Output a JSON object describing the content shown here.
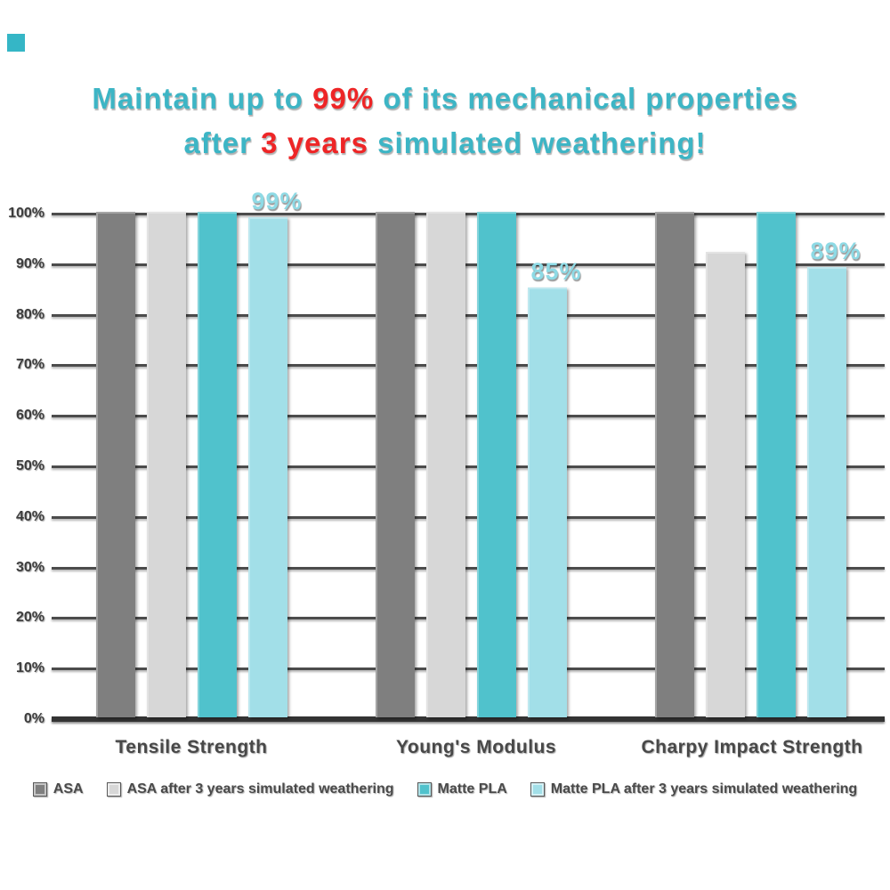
{
  "title": {
    "line1_segments": [
      {
        "text": "Maintain up to ",
        "color_key": "title_teal"
      },
      {
        "text": "99%",
        "color_key": "title_red"
      },
      {
        "text": " of its mechanical properties",
        "color_key": "title_teal"
      }
    ],
    "line2_segments": [
      {
        "text": "after ",
        "color_key": "title_teal"
      },
      {
        "text": "3 years",
        "color_key": "title_red"
      },
      {
        "text": " simulated weathering!",
        "color_key": "title_teal"
      }
    ],
    "full_text": "Maintain up to 99% of its mechanical properties after 3 years simulated weathering!"
  },
  "colors": {
    "title_teal": "#3db5c5",
    "title_red": "#ee2526",
    "bar_dark_gray": "#7f7f7f",
    "bar_light_gray": "#d7d7d7",
    "bar_teal": "#50c2cc",
    "bar_light_cyan": "#a2dfe8",
    "data_label_cyan": "#8edae5",
    "grid_line": "#4c4c4c",
    "axis_baseline": "#333333",
    "tick_text": "#3d3d3d",
    "legend_text": "#4a4a4a",
    "decor_square": "#35b6c6"
  },
  "chart_data": {
    "type": "bar",
    "title": "Maintain up to 99% of its mechanical properties after 3 years simulated weathering!",
    "xlabel": "",
    "ylabel": "",
    "ylim": [
      0,
      100
    ],
    "yticks": [
      "0%",
      "10%",
      "20%",
      "30%",
      "40%",
      "50%",
      "60%",
      "70%",
      "80%",
      "90%",
      "100%"
    ],
    "ytick_values": [
      0,
      10,
      20,
      30,
      40,
      50,
      60,
      70,
      80,
      90,
      100
    ],
    "grid": "horizontal",
    "legend_position": "bottom",
    "categories": [
      "Tensile Strength",
      "Young's Modulus",
      "Charpy Impact Strength"
    ],
    "series": [
      {
        "name": "ASA",
        "color_key": "bar_dark_gray",
        "values": [
          100,
          100,
          100
        ],
        "value_labels": [
          "",
          "",
          ""
        ]
      },
      {
        "name": "ASA after 3 years simulated weathering",
        "color_key": "bar_light_gray",
        "values": [
          100,
          100,
          92
        ],
        "value_labels": [
          "",
          "",
          ""
        ]
      },
      {
        "name": "Matte PLA",
        "color_key": "bar_teal",
        "values": [
          100,
          100,
          100
        ],
        "value_labels": [
          "",
          "",
          ""
        ]
      },
      {
        "name": "Matte PLA after 3 years simulated weathering",
        "color_key": "bar_light_cyan",
        "values": [
          99,
          85,
          89
        ],
        "value_labels": [
          "99%",
          "85%",
          "89%"
        ]
      }
    ]
  },
  "legend": {
    "items": [
      {
        "label": "ASA",
        "color_key": "bar_dark_gray"
      },
      {
        "label": "ASA after 3 years simulated weathering",
        "color_key": "bar_light_gray"
      },
      {
        "label": "Matte PLA",
        "color_key": "bar_teal"
      },
      {
        "label": "Matte PLA after 3 years simulated weathering",
        "color_key": "bar_light_cyan"
      }
    ]
  }
}
